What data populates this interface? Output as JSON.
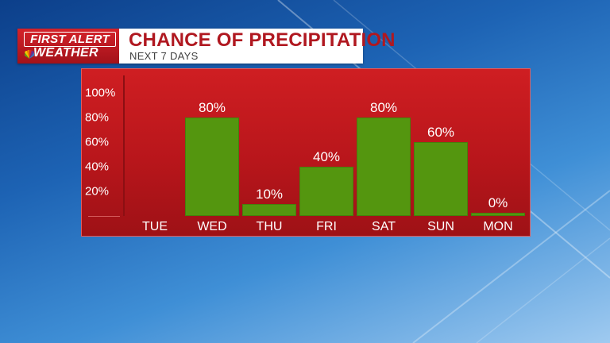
{
  "header": {
    "logo_line1": "FIRST ALERT",
    "logo_line2": "WEATHER",
    "title": "CHANCE OF PRECIPITATION",
    "subtitle": "NEXT 7 DAYS"
  },
  "colors": {
    "panel": "#c4191e",
    "bar": "#54960f",
    "title": "#b01820"
  },
  "chart_data": {
    "type": "bar",
    "title": "CHANCE OF PRECIPITATION",
    "subtitle": "NEXT 7 DAYS",
    "categories": [
      "TUE",
      "WED",
      "THU",
      "FRI",
      "SAT",
      "SUN",
      "MON"
    ],
    "values": [
      0,
      80,
      10,
      40,
      80,
      60,
      0
    ],
    "value_labels": [
      "",
      "80%",
      "10%",
      "40%",
      "80%",
      "60%",
      "0%"
    ],
    "yticks": [
      "100%",
      "80%",
      "60%",
      "40%",
      "20%"
    ],
    "ytick_values": [
      100,
      80,
      60,
      40,
      20
    ],
    "ylim": [
      0,
      100
    ],
    "grid": false,
    "legend": "none"
  }
}
